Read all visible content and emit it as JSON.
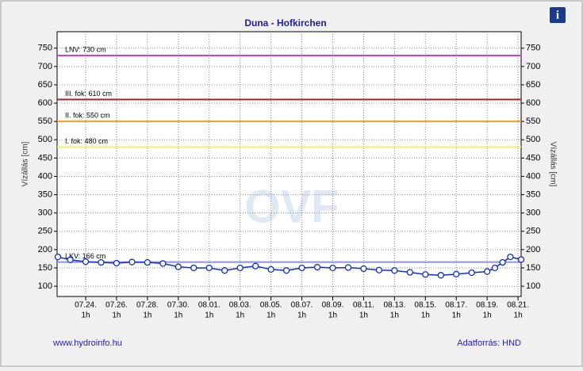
{
  "chart_data": {
    "type": "line",
    "title": "Duna - Hofkirchen",
    "y_label": "Vízállás [cm]",
    "y2_label": "Vízállás [cm]",
    "watermark": "OVF",
    "footer_left": "www.hydroinfo.hu",
    "footer_right": "Adatforrás: HND",
    "info_icon": "i",
    "x_tick_hour": "1h",
    "xlim": [
      -1.85,
      28.2
    ],
    "xticks": [
      {
        "value": 0,
        "label": "07.24."
      },
      {
        "value": 2,
        "label": "07.26."
      },
      {
        "value": 4,
        "label": "07.28."
      },
      {
        "value": 6,
        "label": "07.30."
      },
      {
        "value": 8,
        "label": "08.01."
      },
      {
        "value": 10,
        "label": "08.03."
      },
      {
        "value": 12,
        "label": "08.05."
      },
      {
        "value": 14,
        "label": "08.07."
      },
      {
        "value": 16,
        "label": "08.09."
      },
      {
        "value": 18,
        "label": "08.11."
      },
      {
        "value": 20,
        "label": "08.13."
      },
      {
        "value": 22,
        "label": "08.15."
      },
      {
        "value": 24,
        "label": "08.17."
      },
      {
        "value": 26,
        "label": "08.19."
      },
      {
        "value": 28,
        "label": "08.21."
      }
    ],
    "ylim": [
      72,
      795
    ],
    "yticks": [
      100,
      150,
      200,
      250,
      300,
      350,
      400,
      450,
      500,
      550,
      600,
      650,
      700,
      750
    ],
    "grid": true,
    "thresholds": [
      {
        "label": "LNV: 730 cm",
        "value": 730,
        "color": "#d040d0"
      },
      {
        "label": "III. fok: 610 cm",
        "value": 610,
        "color": "#b02020"
      },
      {
        "label": "II. fok: 550 cm",
        "value": 550,
        "color": "#f0a020"
      },
      {
        "label": "I. fok: 480 cm",
        "value": 480,
        "color": "#f0f060"
      },
      {
        "label": "LKV: 166 cm",
        "value": 166,
        "color": "#9090e0"
      }
    ],
    "series": [
      {
        "color": "#1030c0",
        "x": [
          -1.8,
          -1,
          0,
          1,
          2,
          3,
          4,
          5,
          6,
          7,
          8,
          9,
          10,
          11,
          12,
          13,
          14,
          15,
          16,
          17,
          18,
          19,
          20,
          21,
          22,
          23,
          24,
          25,
          26,
          26.5,
          27,
          27.5,
          28.2
        ],
        "values": [
          180,
          172,
          167,
          165,
          163,
          166,
          165,
          162,
          153,
          150,
          150,
          143,
          150,
          155,
          146,
          143,
          150,
          152,
          150,
          151,
          148,
          144,
          143,
          138,
          132,
          130,
          133,
          137,
          140,
          150,
          165,
          180,
          173
        ]
      }
    ]
  }
}
